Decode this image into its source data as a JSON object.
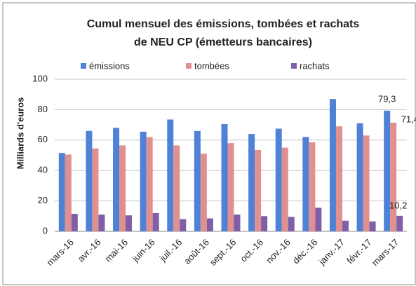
{
  "chart_data": {
    "type": "bar",
    "title": [
      "Cumul mensuel des émissions, tombées et rachats",
      "de NEU CP (émetteurs bancaires)"
    ],
    "y_label": "Milliards d'euros",
    "categories": [
      "mars-16",
      "avr.-16",
      "mai-16",
      "juin-16",
      "juil.-16",
      "août-16",
      "sept.-16",
      "oct.-16",
      "nov.-16",
      "déc.-16",
      "janv.-17",
      "févr.-17",
      "mars-17"
    ],
    "series": [
      {
        "name": "émissions",
        "color": "#4f81d6",
        "values": [
          51.5,
          66,
          68,
          65.5,
          73.5,
          66,
          70.5,
          64,
          67.5,
          62,
          87,
          71,
          79.3
        ],
        "value_labels": [
          null,
          null,
          null,
          null,
          null,
          null,
          null,
          null,
          null,
          null,
          null,
          null,
          "79,3"
        ]
      },
      {
        "name": "tombées",
        "color": "#e0918f",
        "values": [
          50.5,
          54.5,
          56.5,
          62,
          56.5,
          51,
          58,
          53.5,
          55,
          58.5,
          69,
          63,
          71.4
        ],
        "value_labels": [
          null,
          null,
          null,
          null,
          null,
          null,
          null,
          null,
          null,
          null,
          null,
          null,
          "71,4"
        ]
      },
      {
        "name": "rachats",
        "color": "#7f5fa8",
        "values": [
          11.5,
          11,
          10.5,
          12,
          8,
          8.5,
          11,
          10,
          9.5,
          15.5,
          7,
          6.5,
          10.2
        ],
        "value_labels": [
          null,
          null,
          null,
          null,
          null,
          null,
          null,
          null,
          null,
          null,
          null,
          null,
          "10,2"
        ]
      }
    ],
    "ylim": [
      0,
      100
    ],
    "yticks": [
      0,
      20,
      40,
      60,
      80,
      100
    ],
    "grid": true,
    "legend": "top"
  }
}
